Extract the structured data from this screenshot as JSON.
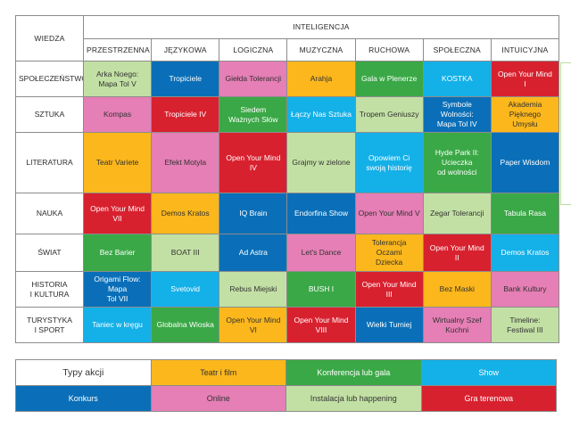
{
  "corner": "WIEDZA",
  "intel_title": "INTELIGENCJA",
  "columns": [
    "PRZESTRZENNA",
    "JĘZYKOWA",
    "LOGICZNA",
    "MUZYCZNA",
    "RUCHOWA",
    "SPOŁECZNA",
    "INTUICYJNA"
  ],
  "colors": {
    "teatr": "#fbb71c",
    "konferencja": "#3aa846",
    "show": "#14b0e8",
    "konkurs": "#0a6fb8",
    "online": "#e57fb5",
    "instalacja": "#c2e0a4",
    "gra": "#d8212f"
  },
  "rows": [
    {
      "label": [
        "SPOŁECZEŃSTWO"
      ],
      "cells": [
        {
          "text": [
            "Arka Noego:",
            "Mapa Tol V"
          ],
          "type": "instalacja"
        },
        {
          "text": [
            "Tropiciele"
          ],
          "type": "konkurs"
        },
        {
          "text": [
            "Giełda Tolerancji"
          ],
          "type": "online"
        },
        {
          "text": [
            "Arahja"
          ],
          "type": "teatr"
        },
        {
          "text": [
            "Gala w Plenerze"
          ],
          "type": "konferencja"
        },
        {
          "text": [
            "KOSTKA"
          ],
          "type": "show"
        },
        {
          "text": [
            "Open Your Mind",
            "I"
          ],
          "type": "gra"
        }
      ]
    },
    {
      "label": [
        "SZTUKA"
      ],
      "cells": [
        {
          "text": [
            "Kompas"
          ],
          "type": "online"
        },
        {
          "text": [
            "Tropiciele IV"
          ],
          "type": "gra"
        },
        {
          "text": [
            "Siedem",
            "Ważnych Słów"
          ],
          "type": "konferencja"
        },
        {
          "text": [
            "Łączy Nas Sztuka"
          ],
          "type": "show"
        },
        {
          "text": [
            "Tropem Geniuszy"
          ],
          "type": "instalacja"
        },
        {
          "text": [
            "Symbole Wolności:",
            "Mapa Tol IV"
          ],
          "type": "konkurs"
        },
        {
          "text": [
            "Akademia Pięknego",
            "Umysłu"
          ],
          "type": "teatr"
        }
      ]
    },
    {
      "label": [
        "LITERATURA"
      ],
      "cells": [
        {
          "text": [
            "Teatr Variete"
          ],
          "type": "teatr"
        },
        {
          "text": [
            "Efekt Motyla"
          ],
          "type": "online"
        },
        {
          "text": [
            "Open Your Mind",
            "IV"
          ],
          "type": "gra"
        },
        {
          "text": [
            "Grajmy w zielone"
          ],
          "type": "instalacja"
        },
        {
          "text": [
            "Opowiem Ci",
            "swoją historię"
          ],
          "type": "show"
        },
        {
          "text": [
            "Hyde Park II: Ucieczka",
            "od wolności"
          ],
          "type": "konferencja"
        },
        {
          "text": [
            "Paper Wisdom"
          ],
          "type": "konkurs"
        }
      ]
    },
    {
      "label": [
        "NAUKA"
      ],
      "cells": [
        {
          "text": [
            "Open Your Mind",
            "VII"
          ],
          "type": "gra"
        },
        {
          "text": [
            "Demos Kratos"
          ],
          "type": "teatr"
        },
        {
          "text": [
            "IQ Brain"
          ],
          "type": "konkurs"
        },
        {
          "text": [
            "Endorfina Show"
          ],
          "type": "konkurs"
        },
        {
          "text": [
            "Open Your Mind V"
          ],
          "type": "online"
        },
        {
          "text": [
            "Zegar Tolerancji"
          ],
          "type": "instalacja"
        },
        {
          "text": [
            "Tabula Rasa"
          ],
          "type": "konferencja"
        }
      ]
    },
    {
      "label": [
        "ŚWIAT"
      ],
      "cells": [
        {
          "text": [
            "Bez Barier"
          ],
          "type": "konferencja"
        },
        {
          "text": [
            "BOAT III"
          ],
          "type": "instalacja"
        },
        {
          "text": [
            "Ad Astra"
          ],
          "type": "konkurs"
        },
        {
          "text": [
            "Let's Dance"
          ],
          "type": "online"
        },
        {
          "text": [
            "Tolerancja Oczami",
            "Dziecka"
          ],
          "type": "teatr"
        },
        {
          "text": [
            "Open Your Mind",
            "II"
          ],
          "type": "gra"
        },
        {
          "text": [
            "Demos Kratos"
          ],
          "type": "show"
        }
      ]
    },
    {
      "label": [
        "HISTORIA",
        "I KULTURA"
      ],
      "cells": [
        {
          "text": [
            "Origami Flow: Mapa",
            "Tol VII"
          ],
          "type": "konkurs"
        },
        {
          "text": [
            "Svetovid"
          ],
          "type": "show"
        },
        {
          "text": [
            "Rebus Miejski"
          ],
          "type": "instalacja"
        },
        {
          "text": [
            "BUSH I"
          ],
          "type": "konferencja"
        },
        {
          "text": [
            "Open Your Mind",
            "III"
          ],
          "type": "gra"
        },
        {
          "text": [
            "Bez Maski"
          ],
          "type": "teatr"
        },
        {
          "text": [
            "Bank Kultury"
          ],
          "type": "online"
        }
      ]
    },
    {
      "label": [
        "TURYSTYKA",
        "I SPORT"
      ],
      "cells": [
        {
          "text": [
            "Taniec w kręgu"
          ],
          "type": "show"
        },
        {
          "text": [
            "Globalna Wioska"
          ],
          "type": "konferencja"
        },
        {
          "text": [
            "Open Your Mind VI"
          ],
          "type": "teatr"
        },
        {
          "text": [
            "Open Your Mind VIII"
          ],
          "type": "gra"
        },
        {
          "text": [
            "Wielki Turniej"
          ],
          "type": "konkurs"
        },
        {
          "text": [
            "Wirtualny Szef Kuchni"
          ],
          "type": "online"
        },
        {
          "text": [
            "Timeline:",
            "Festiwal III"
          ],
          "type": "instalacja"
        }
      ]
    }
  ],
  "legend": {
    "title": "Typy akcji",
    "items": [
      {
        "label": "Teatr i film",
        "type": "teatr"
      },
      {
        "label": "Konferencja lub gala",
        "type": "konferencja"
      },
      {
        "label": "Show",
        "type": "show"
      },
      {
        "label": "Konkurs",
        "type": "konkurs"
      },
      {
        "label": "Online",
        "type": "online"
      },
      {
        "label": "Instalacja lub happening",
        "type": "instalacja"
      },
      {
        "label": "Gra terenowa",
        "type": "gra"
      }
    ]
  }
}
